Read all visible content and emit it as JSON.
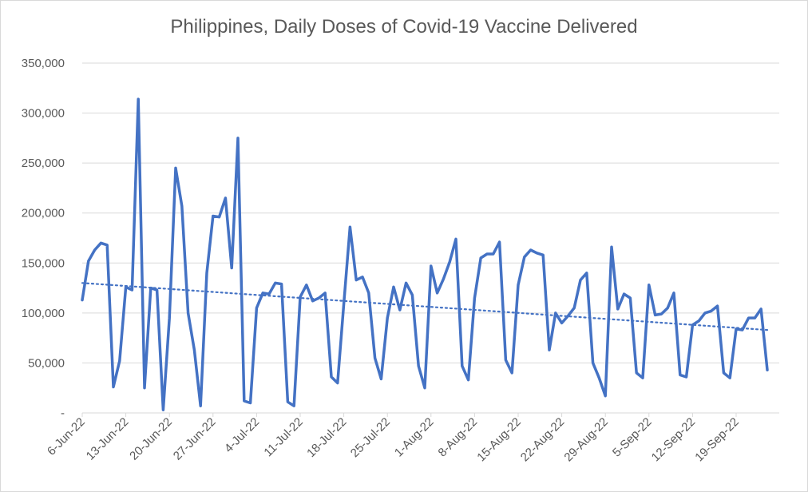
{
  "chart_data": {
    "type": "line",
    "title": "Philippines, Daily Doses of Covid-19 Vaccine Delivered",
    "xlabel": "",
    "ylabel": "",
    "ylim": [
      0,
      350000
    ],
    "y_ticks": [
      {
        "value": 0,
        "label": "-"
      },
      {
        "value": 50000,
        "label": "50,000"
      },
      {
        "value": 100000,
        "label": "100,000"
      },
      {
        "value": 150000,
        "label": "150,000"
      },
      {
        "value": 200000,
        "label": "200,000"
      },
      {
        "value": 250000,
        "label": "250,000"
      },
      {
        "value": 300000,
        "label": "300,000"
      },
      {
        "value": 350000,
        "label": "350,000"
      }
    ],
    "x_ticks": [
      "6-Jun-22",
      "13-Jun-22",
      "20-Jun-22",
      "27-Jun-22",
      "4-Jul-22",
      "11-Jul-22",
      "18-Jul-22",
      "25-Jul-22",
      "1-Aug-22",
      "8-Aug-22",
      "15-Aug-22",
      "22-Aug-22",
      "29-Aug-22",
      "5-Sep-22",
      "12-Sep-22",
      "19-Sep-22"
    ],
    "grid": true,
    "legend": "none",
    "series": [
      {
        "color": "#4472c4",
        "style": "solid",
        "x_start": "6-Jun-22",
        "values": [
          113000,
          152000,
          163000,
          170000,
          168000,
          26000,
          52000,
          126000,
          123000,
          314000,
          25000,
          125000,
          123000,
          3000,
          95000,
          245000,
          207000,
          100000,
          63000,
          7000,
          140000,
          197000,
          196000,
          215000,
          145000,
          275000,
          12000,
          10000,
          105000,
          120000,
          119000,
          130000,
          129000,
          11000,
          7000,
          116000,
          128000,
          112000,
          115000,
          120000,
          36000,
          30000,
          109000,
          186000,
          133000,
          136000,
          120000,
          55000,
          34000,
          95000,
          126000,
          103000,
          130000,
          118000,
          47000,
          25000,
          147000,
          120000,
          134000,
          151000,
          174000,
          47000,
          33000,
          115000,
          155000,
          159000,
          159000,
          171000,
          53000,
          40000,
          128000,
          156000,
          163000,
          160000,
          158000,
          63000,
          100000,
          90000,
          97000,
          105000,
          133000,
          140000,
          50000,
          35000,
          17000,
          166000,
          104000,
          119000,
          115000,
          40000,
          35000,
          128000,
          98000,
          99000,
          105000,
          120000,
          38000,
          36000,
          88000,
          92000,
          100000,
          102000,
          107000,
          40000,
          35000,
          84000,
          83000,
          95000,
          95000,
          104000,
          43000
        ]
      },
      {
        "name": "trend",
        "color": "#4472c4",
        "style": "dotted",
        "linear_trend": {
          "start": 130000,
          "end": 83000
        }
      }
    ]
  }
}
